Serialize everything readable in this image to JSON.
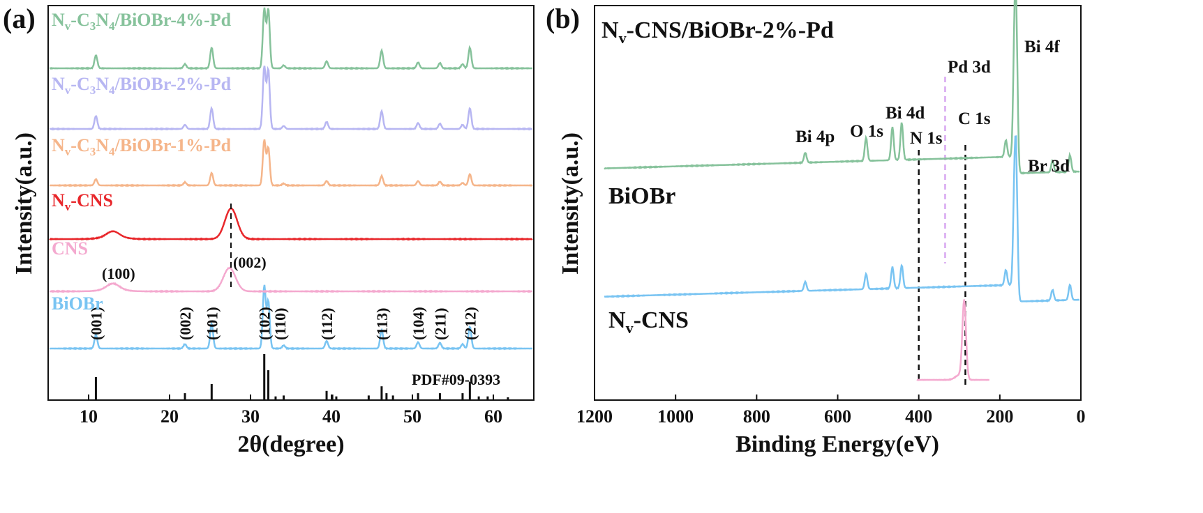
{
  "chart_data": [
    {
      "panel": "(a)",
      "type": "line",
      "xlabel": "2θ(degree)",
      "ylabel": "Intensity(a.u.)",
      "xlim": [
        5,
        65
      ],
      "xticks": [
        "10",
        "20",
        "30",
        "40",
        "50",
        "60"
      ],
      "series": [
        {
          "name": "BiOBr",
          "color": "#79c4f2",
          "offset": 0.0,
          "baseline": 0.0,
          "peaks": [
            [
              10.9,
              0.22
            ],
            [
              21.9,
              0.07
            ],
            [
              25.2,
              0.4
            ],
            [
              31.7,
              1.0
            ],
            [
              32.2,
              0.75
            ],
            [
              34.1,
              0.05
            ],
            [
              39.4,
              0.12
            ],
            [
              46.2,
              0.3
            ],
            [
              50.7,
              0.1
            ],
            [
              53.4,
              0.09
            ],
            [
              56.2,
              0.07
            ],
            [
              57.1,
              0.35
            ]
          ]
        },
        {
          "name": "CNS",
          "color": "#f4a9cf",
          "offset": 2.45,
          "baseline": 0.0,
          "peaks": [
            [
              13.0,
              0.12
            ],
            [
              27.4,
              0.48
            ]
          ]
        },
        {
          "name": "Nv-CNS",
          "color": "#e8272b",
          "offset": 3.3,
          "baseline": 0.0,
          "peaks": [
            [
              13.0,
              0.1
            ],
            [
              27.6,
              0.55
            ]
          ]
        },
        {
          "name": "Nv-C3N4/BiOBr-1%-Pd",
          "color": "#f5b58a",
          "offset": 4.3,
          "baseline": 0.0,
          "peaks": [
            [
              10.9,
              0.1
            ],
            [
              21.9,
              0.05
            ],
            [
              25.2,
              0.2
            ],
            [
              31.7,
              0.72
            ],
            [
              32.2,
              0.6
            ],
            [
              34.1,
              0.03
            ],
            [
              39.4,
              0.07
            ],
            [
              46.2,
              0.15
            ],
            [
              50.7,
              0.07
            ],
            [
              53.4,
              0.06
            ],
            [
              56.2,
              0.04
            ],
            [
              57.1,
              0.18
            ]
          ]
        },
        {
          "name": "Nv-C3N4/BiOBr-2%-Pd",
          "color": "#b7b6f2",
          "offset": 5.2,
          "baseline": 0.0,
          "peaks": [
            [
              10.9,
              0.22
            ],
            [
              21.9,
              0.07
            ],
            [
              25.2,
              0.35
            ],
            [
              31.7,
              1.05
            ],
            [
              32.2,
              1.0
            ],
            [
              34.1,
              0.05
            ],
            [
              39.4,
              0.12
            ],
            [
              46.2,
              0.3
            ],
            [
              50.7,
              0.1
            ],
            [
              53.4,
              0.09
            ],
            [
              56.2,
              0.07
            ],
            [
              57.1,
              0.35
            ]
          ]
        },
        {
          "name": "Nv-C3N4/BiOBr-4%-Pd",
          "color": "#86c29b",
          "offset": 6.1,
          "baseline": 0.0,
          "peaks": [
            [
              10.9,
              0.22
            ],
            [
              21.9,
              0.07
            ],
            [
              25.2,
              0.35
            ],
            [
              31.7,
              1.0
            ],
            [
              32.2,
              1.0
            ],
            [
              34.1,
              0.05
            ],
            [
              39.4,
              0.12
            ],
            [
              46.2,
              0.3
            ],
            [
              50.7,
              0.1
            ],
            [
              53.4,
              0.09
            ],
            [
              56.2,
              0.07
            ],
            [
              57.1,
              0.35
            ]
          ]
        }
      ],
      "reference": {
        "label": "PDF#09-0393",
        "sticks": [
          [
            10.9,
            0.5
          ],
          [
            21.9,
            0.15
          ],
          [
            25.2,
            0.35
          ],
          [
            31.7,
            1.0
          ],
          [
            32.2,
            0.65
          ],
          [
            33.1,
            0.08
          ],
          [
            34.1,
            0.1
          ],
          [
            39.4,
            0.2
          ],
          [
            40.1,
            0.12
          ],
          [
            40.6,
            0.08
          ],
          [
            44.6,
            0.1
          ],
          [
            46.2,
            0.3
          ],
          [
            46.8,
            0.15
          ],
          [
            47.6,
            0.1
          ],
          [
            50.7,
            0.15
          ],
          [
            53.4,
            0.15
          ],
          [
            56.2,
            0.15
          ],
          [
            57.1,
            0.4
          ],
          [
            58.2,
            0.08
          ],
          [
            59.3,
            0.08
          ],
          [
            61.8,
            0.06
          ]
        ]
      },
      "hkl_labels": [
        {
          "text": "(001)",
          "x": 10.9
        },
        {
          "text": "(002)",
          "x": 21.9
        },
        {
          "text": "(101)",
          "x": 25.2
        },
        {
          "text": "(102)",
          "x": 31.7
        },
        {
          "text": "(110)",
          "x": 33.6
        },
        {
          "text": "(112)",
          "x": 39.4
        },
        {
          "text": "(113)",
          "x": 46.2
        },
        {
          "text": "(104)",
          "x": 50.7
        },
        {
          "text": "(211)",
          "x": 53.4
        },
        {
          "text": "(212)",
          "x": 57.1
        }
      ],
      "cns_labels": [
        {
          "text": "(100)",
          "x": 13.0
        },
        {
          "text": "(002)",
          "x": 27.4
        }
      ]
    },
    {
      "panel": "(b)",
      "type": "line",
      "xlabel": "Binding Energy(eV)",
      "ylabel": "Intensity(a.u.)",
      "xlim": [
        1200,
        0
      ],
      "xticks": [
        "1200",
        "1000",
        "800",
        "600",
        "400",
        "200",
        "0"
      ],
      "title": "Nv-CNS/BiOBr-2%-Pd",
      "series": [
        {
          "name": "BiOBr",
          "color": "#86c29b",
          "peaks": [
            [
              680,
              0.12
            ],
            [
              530,
              0.28
            ],
            [
              465,
              0.4
            ],
            [
              442,
              0.45
            ],
            [
              185,
              0.2
            ],
            [
              159,
              1.55
            ],
            [
              164,
              1.3
            ],
            [
              70,
              0.14
            ],
            [
              27,
              0.2
            ]
          ]
        },
        {
          "name": "Nv-CNS",
          "color": "#79c4f2",
          "peaks": [
            [
              680,
              0.12
            ],
            [
              530,
              0.2
            ],
            [
              465,
              0.28
            ],
            [
              442,
              0.3
            ],
            [
              185,
              0.2
            ],
            [
              159,
              1.45
            ],
            [
              164,
              1.2
            ],
            [
              70,
              0.14
            ],
            [
              27,
              0.2
            ]
          ]
        },
        {
          "name": "C 1s region",
          "color": "#f4a9cf",
          "peaks": [
            [
              288,
              1.0
            ]
          ]
        }
      ],
      "peak_labels": [
        {
          "text": "Bi 4f"
        },
        {
          "text": "Pd 3d"
        },
        {
          "text": "Bi 4d"
        },
        {
          "text": "O 1s"
        },
        {
          "text": "Bi 4p"
        },
        {
          "text": "N 1s"
        },
        {
          "text": "C 1s"
        },
        {
          "text": "Br 3d"
        }
      ],
      "reference_lines": [
        {
          "x": 400,
          "color": "#111111",
          "label": "N 1s"
        },
        {
          "x": 285,
          "color": "#111111",
          "label": "C 1s"
        },
        {
          "x": 335,
          "color": "#d7a6f0",
          "label": "Pd 3d"
        }
      ],
      "side_labels": [
        "BiOBr",
        "Nv-CNS"
      ]
    }
  ]
}
